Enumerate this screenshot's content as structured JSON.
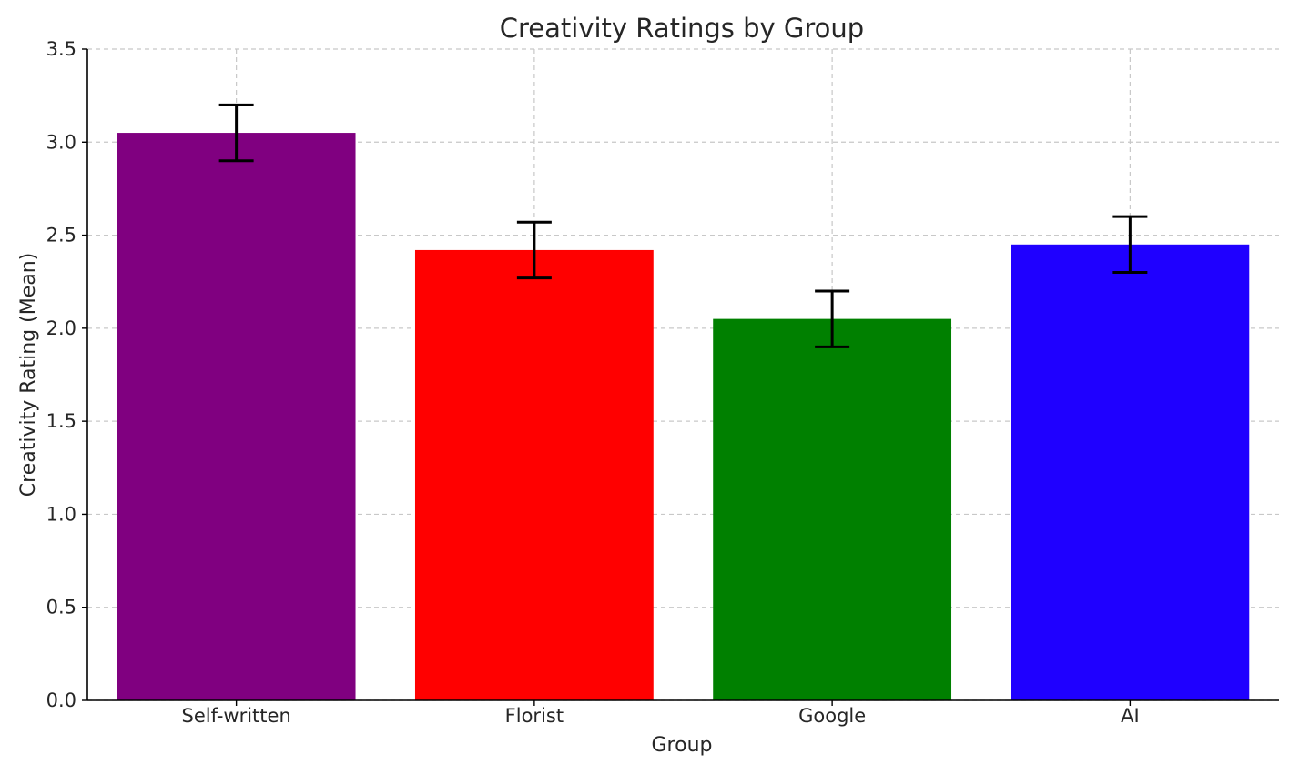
{
  "chart_data": {
    "type": "bar",
    "title": "Creativity Ratings by Group",
    "xlabel": "Group",
    "ylabel": "Creativity Rating (Mean)",
    "categories": [
      "Self-written",
      "Florist",
      "Google",
      "AI"
    ],
    "values": [
      3.05,
      2.42,
      2.05,
      2.45
    ],
    "errors": [
      0.15,
      0.15,
      0.15,
      0.15
    ],
    "colors": [
      "#800080",
      "#ff0000",
      "#008000",
      "#1f00ff"
    ],
    "ylim": [
      0,
      3.5
    ],
    "yticks": [
      "0.0",
      "0.5",
      "1.0",
      "1.5",
      "2.0",
      "2.5",
      "3.0",
      "3.5"
    ],
    "grid": true,
    "legend": "none"
  }
}
